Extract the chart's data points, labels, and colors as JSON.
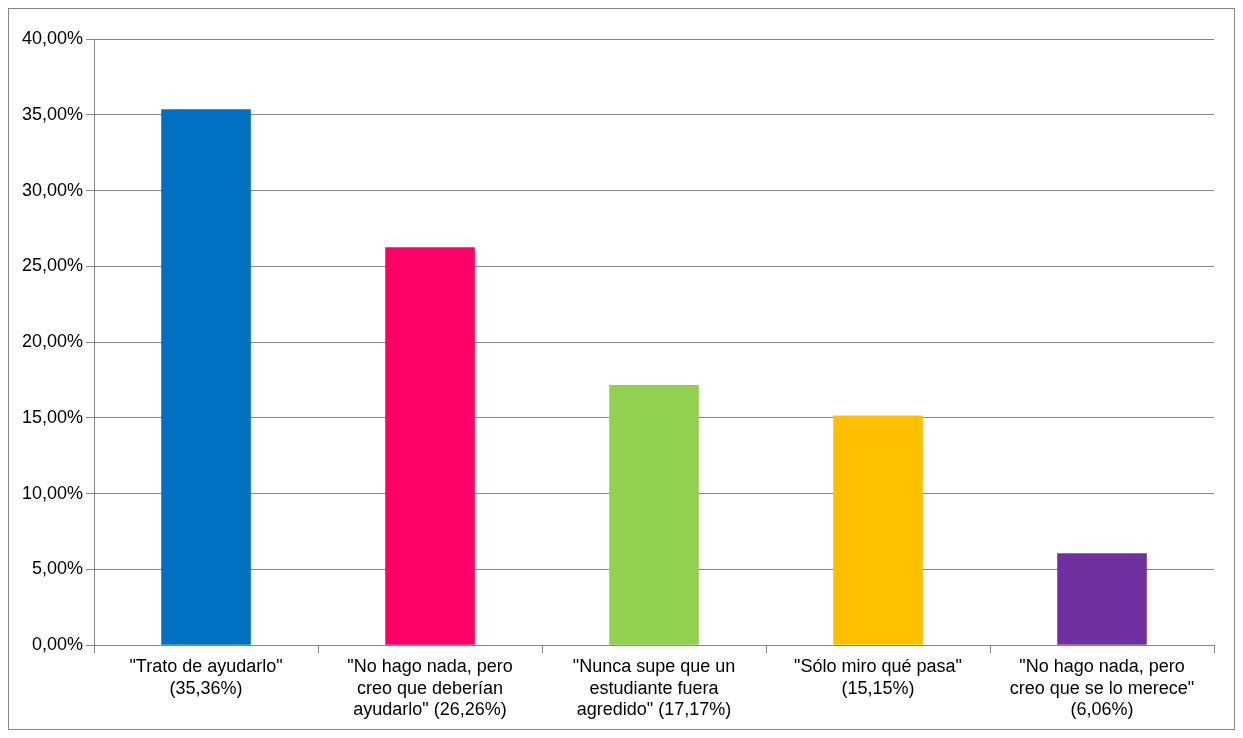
{
  "chart_data": {
    "type": "bar",
    "categories": [
      "\"Trato de ayudarlo\" (35,36%)",
      "\"No hago nada, pero creo que deberían ayudarlo\" (26,26%)",
      "\"Nunca supe que un estudiante fuera agredido\" (17,17%)",
      "\"Sólo miro qué pasa\" (15,15%)",
      "\"No hago nada, pero creo que se lo merece\" (6,06%)"
    ],
    "values": [
      35.36,
      26.26,
      17.17,
      15.15,
      6.06
    ],
    "colors": [
      "#0070c0",
      "#ff0066",
      "#92d050",
      "#ffc000",
      "#7030a0"
    ],
    "ylim": [
      0,
      40
    ],
    "yticks": [
      {
        "value": 0,
        "label": "0,00%"
      },
      {
        "value": 5,
        "label": "5,00%"
      },
      {
        "value": 10,
        "label": "10,00%"
      },
      {
        "value": 15,
        "label": "15,00%"
      },
      {
        "value": 20,
        "label": "20,00%"
      },
      {
        "value": 25,
        "label": "25,00%"
      },
      {
        "value": 30,
        "label": "30,00%"
      },
      {
        "value": 35,
        "label": "35,00%"
      },
      {
        "value": 40,
        "label": "40,00%"
      }
    ],
    "grid": "y",
    "legend": false
  }
}
